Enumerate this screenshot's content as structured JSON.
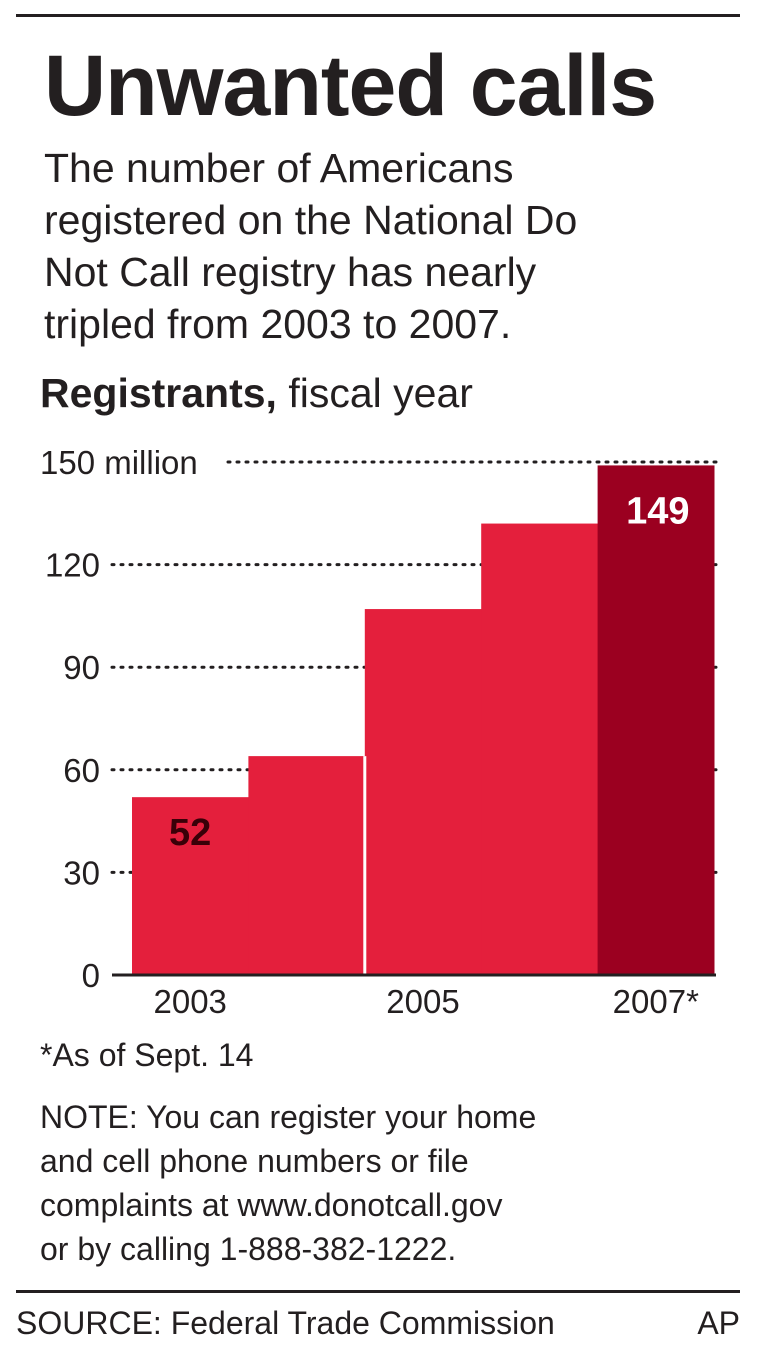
{
  "header": {
    "title": "Unwanted calls",
    "subtitle_lines": [
      "The number of Americans",
      "registered on the National Do",
      "Not Call registry has nearly",
      "tripled from 2003 to 2007."
    ],
    "unit_bold": "Registrants,",
    "unit_rest": " fiscal year"
  },
  "chart_data": {
    "type": "bar",
    "categories": [
      "2003",
      "2004",
      "2005",
      "2006",
      "2007*"
    ],
    "values": [
      52,
      64,
      107,
      132,
      149
    ],
    "x_tick_labels": [
      "2003",
      "2005",
      "2007*"
    ],
    "y_ticks": [
      0,
      30,
      60,
      90,
      120,
      150
    ],
    "y_tick_labels": [
      "0",
      "30",
      "60",
      "90",
      "120",
      "150 million"
    ],
    "ylim": [
      0,
      150
    ],
    "grid": "dotted horizontal",
    "data_labels": [
      {
        "index": 0,
        "text": "52"
      },
      {
        "index": 4,
        "text": "149"
      }
    ],
    "colors": {
      "bar": "#e41f3c",
      "highlight": "#9b0020",
      "label_dark": "#3a0008",
      "label_light": "#ffffff"
    },
    "highlight_index": 4
  },
  "footnote": "*As of Sept. 14",
  "note_lines": [
    "NOTE: You can register your home",
    "and cell phone numbers or file",
    "complaints at www.donotcall.gov",
    "or by calling 1-888-382-1222."
  ],
  "source": "SOURCE: Federal Trade Commission",
  "credit": "AP"
}
